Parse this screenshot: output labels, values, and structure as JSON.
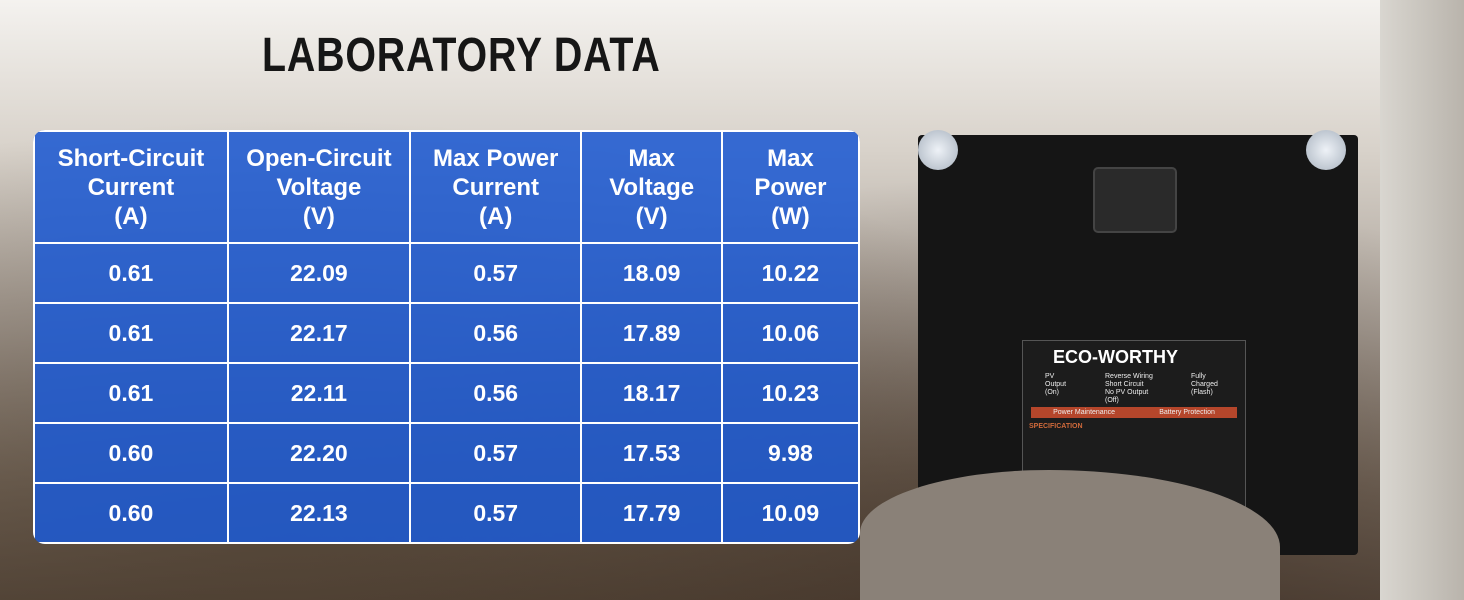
{
  "header": {
    "title": "LABORATORY DATA"
  },
  "table": {
    "columns": [
      [
        "Short-Circuit",
        "Current",
        "(A)"
      ],
      [
        "Open-Circuit",
        "Voltage",
        "(V)"
      ],
      [
        "Max Power",
        "Current",
        "(A)"
      ],
      [
        "Max",
        "Voltage",
        "(V)"
      ],
      [
        "Max",
        "Power",
        "(W)"
      ]
    ],
    "rows": [
      [
        "0.61",
        "22.09",
        "0.57",
        "18.09",
        "10.22"
      ],
      [
        "0.61",
        "22.17",
        "0.56",
        "17.89",
        "10.06"
      ],
      [
        "0.61",
        "22.11",
        "0.56",
        "18.17",
        "10.23"
      ],
      [
        "0.60",
        "22.20",
        "0.57",
        "17.53",
        "9.98"
      ],
      [
        "0.60",
        "22.13",
        "0.57",
        "17.79",
        "10.09"
      ]
    ]
  },
  "product_label": {
    "brand": "ECO-WORTHY",
    "indicators": [
      [
        "PV",
        "Output",
        "(On)"
      ],
      [
        "Reverse Wiring",
        "Short Circuit",
        "No PV Output",
        "(Off)"
      ],
      [
        "Fully",
        "Charged",
        "(Flash)"
      ]
    ],
    "functions": [
      "Power Maintenance",
      "Battery Protection"
    ],
    "section": "SPECIFICATION"
  }
}
